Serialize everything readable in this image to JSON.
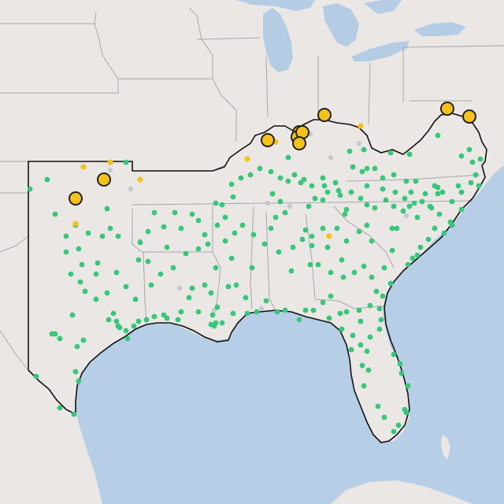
{
  "map": {
    "colors": {
      "land": "#eae7e4",
      "water": "#b6cfe6",
      "lake": "#b4cde4",
      "state_border": "#a9a9a9",
      "region_border": "#111111",
      "green_marker": "#35c77a",
      "yellow_marker": "#f5c21a",
      "yellow_marker_stroke": "#222222",
      "gray_marker": "#c5c9ce"
    },
    "marker_groups": [
      {
        "name": "green",
        "count": 240
      },
      {
        "name": "yellow-small",
        "count": 8
      },
      {
        "name": "yellow-large",
        "count": 10
      },
      {
        "name": "gray",
        "count": 12
      }
    ]
  }
}
